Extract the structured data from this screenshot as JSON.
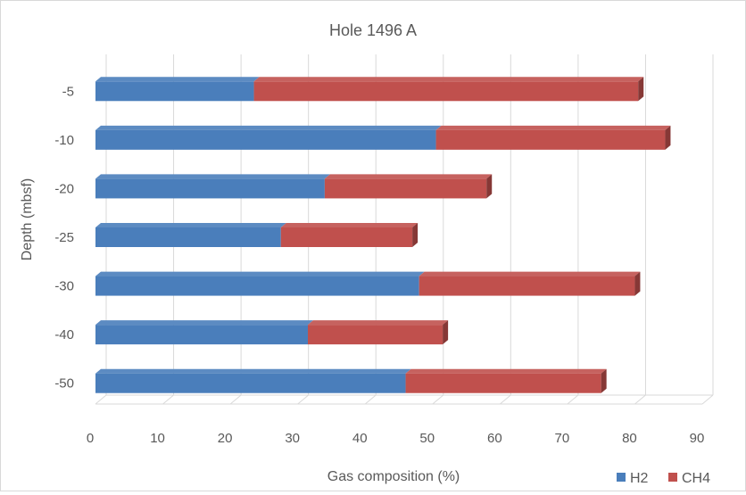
{
  "chart_data": {
    "type": "bar",
    "orientation": "horizontal",
    "stacked": true,
    "title": "Hole 1496 A",
    "xlabel": "Gas composition (%)",
    "ylabel": "Depth (mbsf)",
    "xlim": [
      0,
      90
    ],
    "x_ticks": [
      "0",
      "10",
      "20",
      "30",
      "40",
      "50",
      "60",
      "70",
      "80",
      "90"
    ],
    "categories": [
      "-5",
      "-10",
      "-20",
      "-25",
      "-30",
      "-40",
      "-50"
    ],
    "series": [
      {
        "name": "H2",
        "color": "#4a7ebb",
        "values": [
          23.5,
          50.5,
          34,
          27.5,
          48,
          31.5,
          46
        ]
      },
      {
        "name": "CH4",
        "color": "#c0504d",
        "values": [
          57,
          34,
          24,
          19.5,
          32,
          20,
          29
        ]
      }
    ],
    "legend_position": "bottom-right",
    "grid": true,
    "style": "3d"
  }
}
